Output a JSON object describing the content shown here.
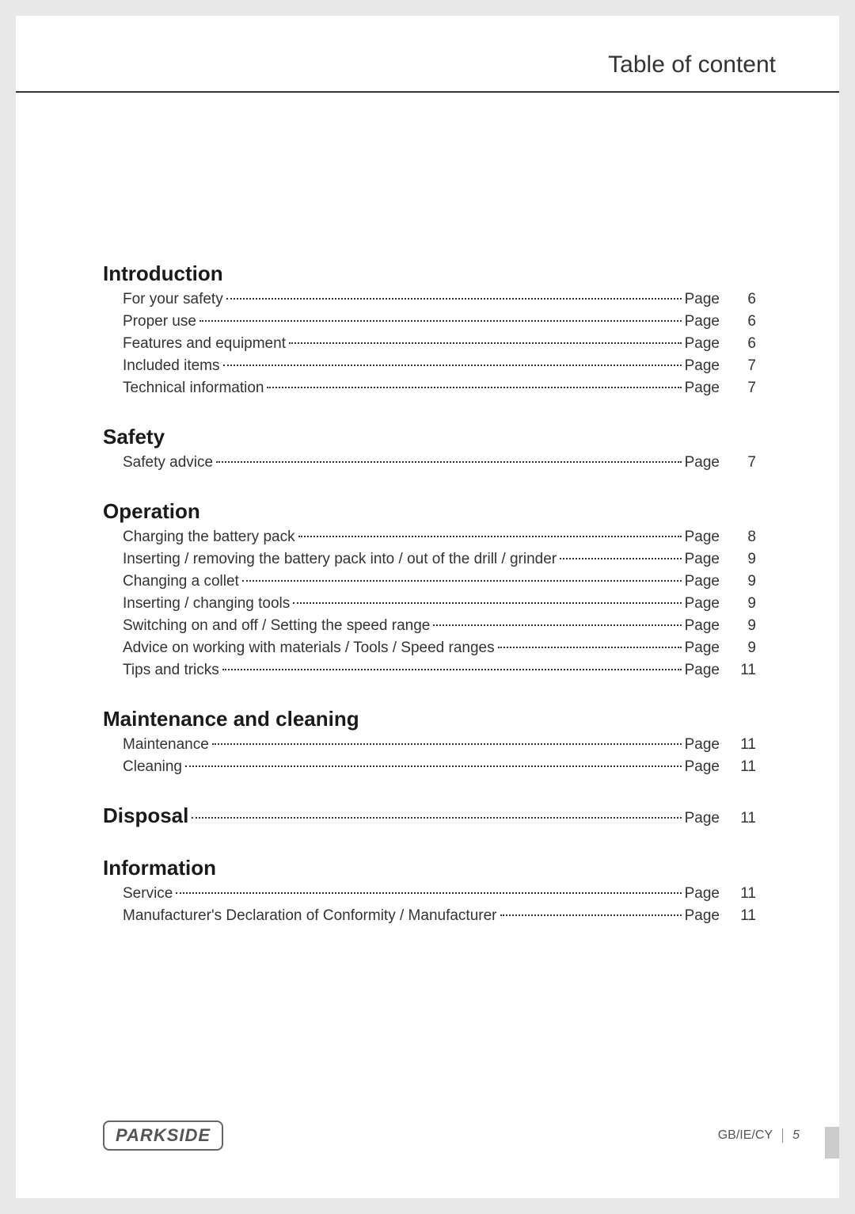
{
  "header": {
    "title": "Table of content"
  },
  "sections": [
    {
      "title": "Introduction",
      "inline": false,
      "items": [
        {
          "label": "For your safety",
          "page_label": "Page",
          "page_num": "6"
        },
        {
          "label": "Proper use",
          "page_label": "Page",
          "page_num": "6"
        },
        {
          "label": "Features and equipment",
          "page_label": "Page",
          "page_num": "6"
        },
        {
          "label": "Included items",
          "page_label": "Page",
          "page_num": "7"
        },
        {
          "label": "Technical information",
          "page_label": "Page",
          "page_num": "7"
        }
      ]
    },
    {
      "title": "Safety",
      "inline": false,
      "items": [
        {
          "label": "Safety advice",
          "page_label": "Page",
          "page_num": "7"
        }
      ]
    },
    {
      "title": "Operation",
      "inline": false,
      "items": [
        {
          "label": "Charging the battery pack",
          "page_label": "Page",
          "page_num": "8"
        },
        {
          "label": "Inserting / removing the battery pack into / out of the drill / grinder",
          "page_label": "Page",
          "page_num": "9"
        },
        {
          "label": "Changing a collet",
          "page_label": "Page",
          "page_num": "9"
        },
        {
          "label": "Inserting / changing tools",
          "page_label": "Page",
          "page_num": "9"
        },
        {
          "label": "Switching on and off / Setting the speed range",
          "page_label": "Page",
          "page_num": "9"
        },
        {
          "label": "Advice on working with materials / Tools / Speed ranges",
          "page_label": "Page",
          "page_num": "9"
        },
        {
          "label": "Tips and tricks",
          "page_label": "Page",
          "page_num": "11"
        }
      ]
    },
    {
      "title": "Maintenance and cleaning",
      "inline": false,
      "items": [
        {
          "label": "Maintenance",
          "page_label": "Page",
          "page_num": "11"
        },
        {
          "label": "Cleaning",
          "page_label": "Page",
          "page_num": "11"
        }
      ]
    },
    {
      "title": "Disposal",
      "inline": true,
      "page_label": "Page",
      "page_num": "11",
      "items": []
    },
    {
      "title": "Information",
      "inline": false,
      "items": [
        {
          "label": "Service",
          "page_label": "Page",
          "page_num": "11"
        },
        {
          "label": "Manufacturer's Declaration of Conformity / Manufacturer",
          "page_label": "Page",
          "page_num": "11"
        }
      ]
    }
  ],
  "footer": {
    "logo": "PARKSIDE",
    "region": "GB/IE/CY",
    "page_num": "5"
  },
  "styling": {
    "page_bg": "#ffffff",
    "outer_bg": "#e8e8e8",
    "text_color": "#333333",
    "title_color": "#1a1a1a",
    "body_fontsize": 19,
    "title_fontsize": 26,
    "header_fontsize": 30,
    "footer_fontsize": 16,
    "side_tab_color": "#cccccc"
  }
}
